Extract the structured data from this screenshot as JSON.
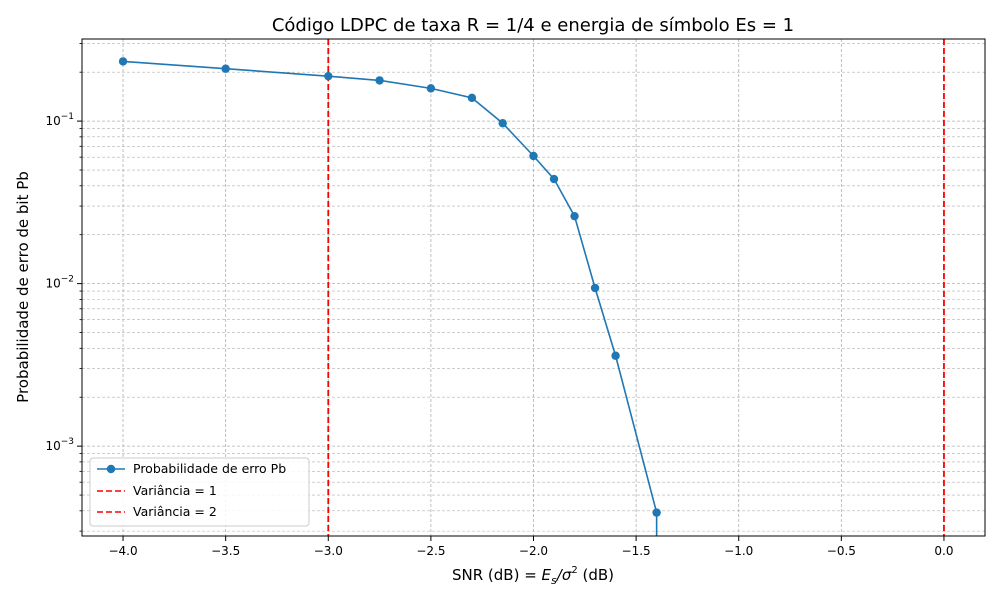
{
  "chart_data": {
    "type": "line",
    "title": "Código LDPC de taxa R = 1/4 e energia de símbolo Es = 1",
    "xlabel_prefix": "SNR (dB) = ",
    "xlabel_sym1": "E",
    "xlabel_sub": "s",
    "xlabel_slash": "/σ",
    "xlabel_sup": "2",
    "xlabel_suffix": " (dB)",
    "ylabel": "Probabilidade de erro de bit Pb",
    "xlim": [
      -4.2,
      0.2
    ],
    "ylim": [
      0.00028,
      0.32
    ],
    "yscale": "log",
    "grid": true,
    "legend_position": "lower-left",
    "x_ticks": [
      -4.0,
      -3.5,
      -3.0,
      -2.5,
      -2.0,
      -1.5,
      -1.0,
      -0.5,
      0.0
    ],
    "x_tick_labels": [
      "−4.0",
      "−3.5",
      "−3.0",
      "−2.5",
      "−2.0",
      "−1.5",
      "−1.0",
      "−0.5",
      "0.0"
    ],
    "y_ticks": [
      {
        "value": 0.001,
        "base": "10",
        "exp": "−3"
      },
      {
        "value": 0.01,
        "base": "10",
        "exp": "−2"
      },
      {
        "value": 0.1,
        "base": "10",
        "exp": "−1"
      }
    ],
    "series": [
      {
        "name": "Probabilidade de erro Pb",
        "color": "#1f77b4",
        "marker": "circle",
        "x": [
          -4.0,
          -3.5,
          -3.0,
          -2.75,
          -2.5,
          -2.3,
          -2.15,
          -2.0,
          -1.9,
          -1.8,
          -1.7,
          -1.6,
          -1.4
        ],
        "y": [
          0.233,
          0.21,
          0.189,
          0.178,
          0.159,
          0.139,
          0.097,
          0.061,
          0.044,
          0.026,
          0.0094,
          0.0036,
          0.00039
        ],
        "tail_to_bottom": true
      }
    ],
    "vlines": [
      {
        "name": "Variância = 1",
        "x": -3.0,
        "color": "#ff0000"
      },
      {
        "name": "Variância = 2",
        "x": 0.0,
        "color": "#ff0000"
      }
    ]
  }
}
